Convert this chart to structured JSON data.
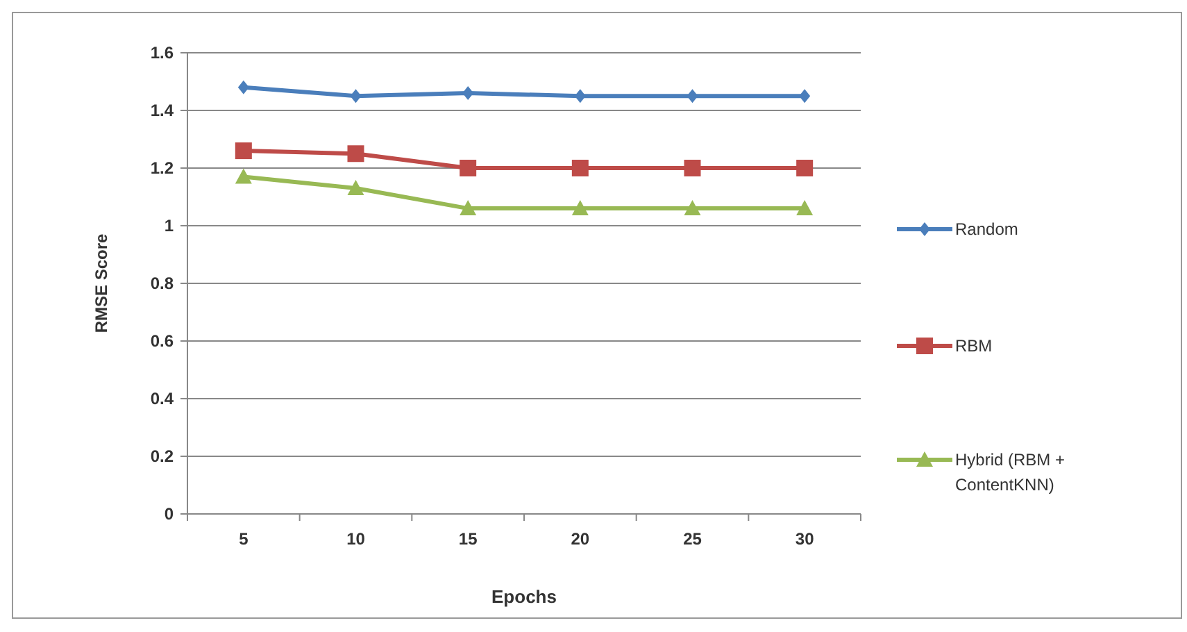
{
  "chart_data": {
    "type": "line",
    "xlabel": "Epochs",
    "ylabel": "RMSE Score",
    "categories": [
      "5",
      "10",
      "15",
      "20",
      "25",
      "30"
    ],
    "series": [
      {
        "name": "Random",
        "color": "#4a7ebb",
        "marker": "diamond",
        "values": [
          1.48,
          1.45,
          1.46,
          1.45,
          1.45,
          1.45
        ]
      },
      {
        "name": "RBM",
        "color": "#be4b48",
        "marker": "square",
        "values": [
          1.26,
          1.25,
          1.2,
          1.2,
          1.2,
          1.2
        ]
      },
      {
        "name": "Hybrid (RBM + ContentKNN)",
        "color": "#98b954",
        "marker": "triangle",
        "values": [
          1.17,
          1.13,
          1.06,
          1.06,
          1.06,
          1.06
        ]
      }
    ],
    "ylim": [
      0,
      1.6
    ],
    "yticks": [
      0,
      0.2,
      0.4,
      0.6,
      0.8,
      1,
      1.2,
      1.4,
      1.6
    ],
    "grid": "y",
    "legend": "right"
  }
}
